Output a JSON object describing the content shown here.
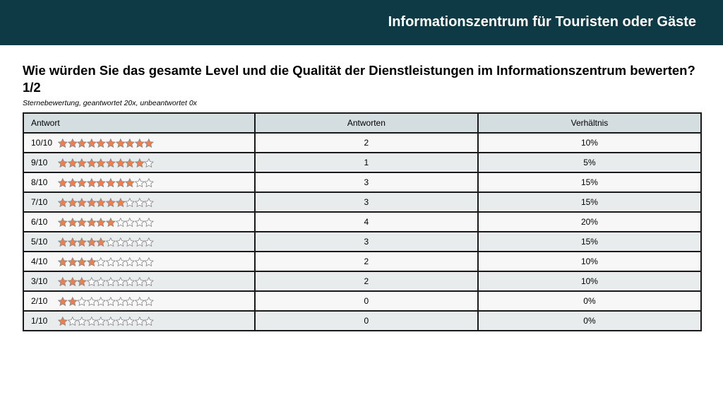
{
  "header": {
    "title": "Informationszentrum für Touristen oder Gäste"
  },
  "question": {
    "text": "Wie würden Sie das gesamte Level und die Qualität der Dienstleistungen im Informationszentrum bewerten? 1/2",
    "subtitle": "Sternebewertung, geantwortet 20x, unbeantwortet 0x"
  },
  "table": {
    "headers": {
      "answer": "Antwort",
      "count": "Antworten",
      "ratio": "Verhältnis"
    },
    "max_stars": 10,
    "colors": {
      "filled_star": "#ef7f4a",
      "empty_star": "#ffffff",
      "star_outline": "#8a8a8a"
    },
    "rows": [
      {
        "label": "10/10",
        "stars": 10,
        "count": "2",
        "ratio": "10%"
      },
      {
        "label": "9/10",
        "stars": 9,
        "count": "1",
        "ratio": "5%"
      },
      {
        "label": "8/10",
        "stars": 8,
        "count": "3",
        "ratio": "15%"
      },
      {
        "label": "7/10",
        "stars": 7,
        "count": "3",
        "ratio": "15%"
      },
      {
        "label": "6/10",
        "stars": 6,
        "count": "4",
        "ratio": "20%"
      },
      {
        "label": "5/10",
        "stars": 5,
        "count": "3",
        "ratio": "15%"
      },
      {
        "label": "4/10",
        "stars": 4,
        "count": "2",
        "ratio": "10%"
      },
      {
        "label": "3/10",
        "stars": 3,
        "count": "2",
        "ratio": "10%"
      },
      {
        "label": "2/10",
        "stars": 2,
        "count": "0",
        "ratio": "0%"
      },
      {
        "label": "1/10",
        "stars": 1,
        "count": "0",
        "ratio": "0%"
      }
    ]
  }
}
